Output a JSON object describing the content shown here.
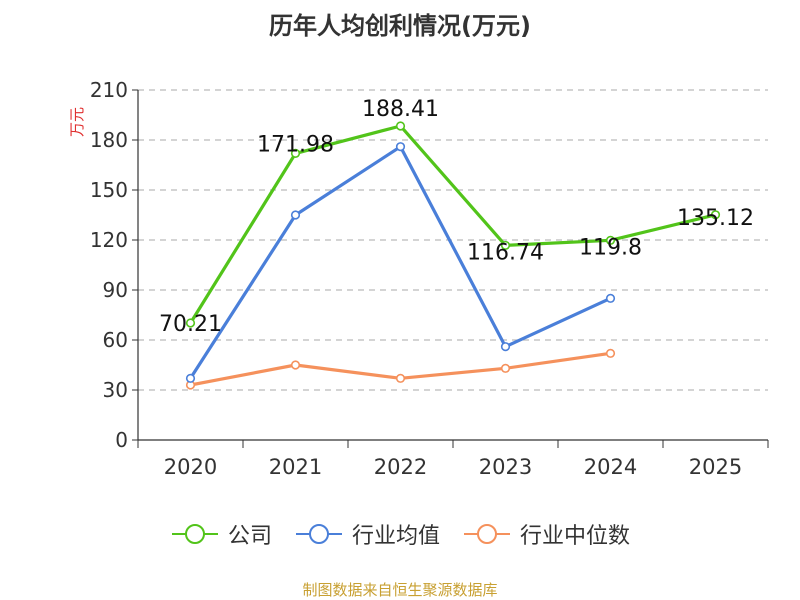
{
  "chart_data": {
    "type": "line",
    "title": "历年人均创利情况(万元)",
    "ylabel": "万元",
    "xlabel": "",
    "ylim": [
      0,
      210
    ],
    "yticks": [
      0,
      30,
      60,
      90,
      120,
      150,
      180,
      210
    ],
    "categories": [
      "2020",
      "2021",
      "2022",
      "2023",
      "2024",
      "2025"
    ],
    "grid": "horizontal-dashed",
    "legend": "bottom-center",
    "series": [
      {
        "name": "公司",
        "color": "#52c41a",
        "values": [
          70.21,
          171.98,
          188.41,
          116.74,
          119.8,
          135.12
        ],
        "labels": [
          "70.21",
          "171.98",
          "188.41",
          "116.74",
          "119.8",
          "135.12"
        ]
      },
      {
        "name": "行业均值",
        "color": "#4a7fd9",
        "values": [
          37,
          135,
          176,
          56,
          85,
          null
        ]
      },
      {
        "name": "行业中位数",
        "color": "#f5915c",
        "values": [
          33,
          45,
          37,
          43,
          52,
          null
        ]
      }
    ]
  },
  "source": {
    "text": "制图数据来自恒生聚源数据库",
    "color": "#c8a032"
  },
  "colors": {
    "axis": "#333333",
    "grid": "#bbbbbb",
    "ylabel": "#e03030"
  }
}
